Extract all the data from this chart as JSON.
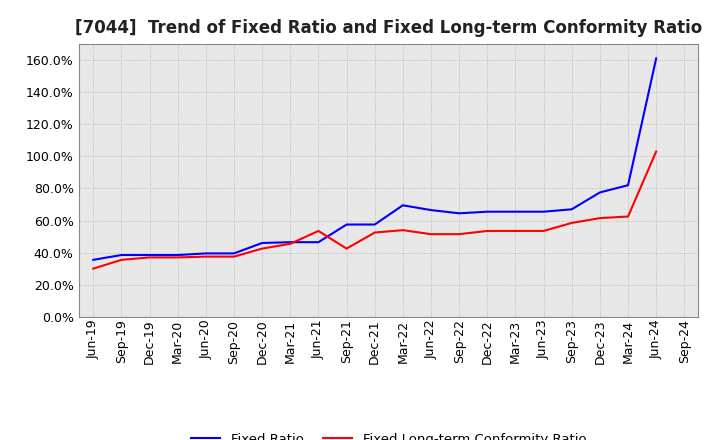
{
  "title": "[7044]  Trend of Fixed Ratio and Fixed Long-term Conformity Ratio",
  "x_labels": [
    "Jun-19",
    "Sep-19",
    "Dec-19",
    "Mar-20",
    "Jun-20",
    "Sep-20",
    "Dec-20",
    "Mar-21",
    "Jun-21",
    "Sep-21",
    "Dec-21",
    "Mar-22",
    "Jun-22",
    "Sep-22",
    "Dec-22",
    "Mar-23",
    "Jun-23",
    "Sep-23",
    "Dec-23",
    "Mar-24",
    "Jun-24",
    "Sep-24"
  ],
  "fixed_ratio": [
    0.355,
    0.385,
    0.385,
    0.385,
    0.395,
    0.395,
    0.46,
    0.465,
    0.465,
    0.575,
    0.575,
    0.695,
    0.665,
    0.645,
    0.655,
    0.655,
    0.655,
    0.67,
    0.775,
    0.82,
    1.61,
    null
  ],
  "fixed_lt_ratio": [
    0.3,
    0.355,
    0.37,
    0.37,
    0.375,
    0.375,
    0.425,
    0.455,
    0.535,
    0.425,
    0.525,
    0.54,
    0.515,
    0.515,
    0.535,
    0.535,
    0.535,
    0.585,
    0.615,
    0.625,
    1.03,
    null
  ],
  "fixed_ratio_color": "#0000ff",
  "fixed_lt_ratio_color": "#ff0000",
  "background_color": "#ffffff",
  "plot_bg_color": "#e8e8e8",
  "grid_color": "#b0b0b0",
  "ylim": [
    0.0,
    1.7
  ],
  "yticks": [
    0.0,
    0.2,
    0.4,
    0.6,
    0.8,
    1.0,
    1.2,
    1.4,
    1.6
  ],
  "legend_fixed": "Fixed Ratio",
  "legend_lt": "Fixed Long-term Conformity Ratio",
  "title_fontsize": 12,
  "tick_fontsize": 9,
  "legend_fontsize": 9.5
}
